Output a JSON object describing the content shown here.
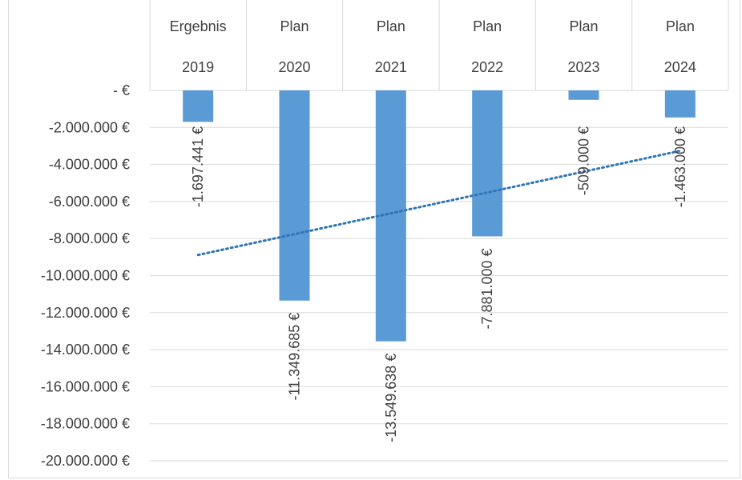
{
  "chart_data": {
    "type": "bar",
    "orientation": "vertical",
    "categories": [
      {
        "line1": "Ergebnis",
        "line2": "2019"
      },
      {
        "line1": "Plan",
        "line2": "2020"
      },
      {
        "line1": "Plan",
        "line2": "2021"
      },
      {
        "line1": "Plan",
        "line2": "2022"
      },
      {
        "line1": "Plan",
        "line2": "2023"
      },
      {
        "line1": "Plan",
        "line2": "2024"
      }
    ],
    "series": [
      {
        "values": [
          -1697441,
          -11349685,
          -13549638,
          -7881000,
          -509000,
          -1463000
        ],
        "data_labels": [
          "-1.697.441 €",
          "-11.349.685 €",
          "-13.549.638 €",
          "-7.881.000 €",
          "-509.000 €",
          "-1.463.000 €"
        ],
        "color": "#5b9bd5"
      }
    ],
    "trendline": {
      "type": "linear",
      "style": "dotted",
      "color": "#2e75b6"
    },
    "y_ticks": [
      {
        "value": 0,
        "label": "-   €"
      },
      {
        "value": -2000000,
        "label": "-2.000.000 €"
      },
      {
        "value": -4000000,
        "label": "-4.000.000 €"
      },
      {
        "value": -6000000,
        "label": "-6.000.000 €"
      },
      {
        "value": -8000000,
        "label": "-8.000.000 €"
      },
      {
        "value": -10000000,
        "label": "-10.000.000 €"
      },
      {
        "value": -12000000,
        "label": "-12.000.000 €"
      },
      {
        "value": -14000000,
        "label": "-14.000.000 €"
      },
      {
        "value": -16000000,
        "label": "-16.000.000 €"
      },
      {
        "value": -18000000,
        "label": "-18.000.000 €"
      },
      {
        "value": -20000000,
        "label": "-20.000.000 €"
      }
    ],
    "ylim": [
      -20000000,
      0
    ],
    "grid": true,
    "title": "",
    "xlabel": "",
    "ylabel": ""
  }
}
